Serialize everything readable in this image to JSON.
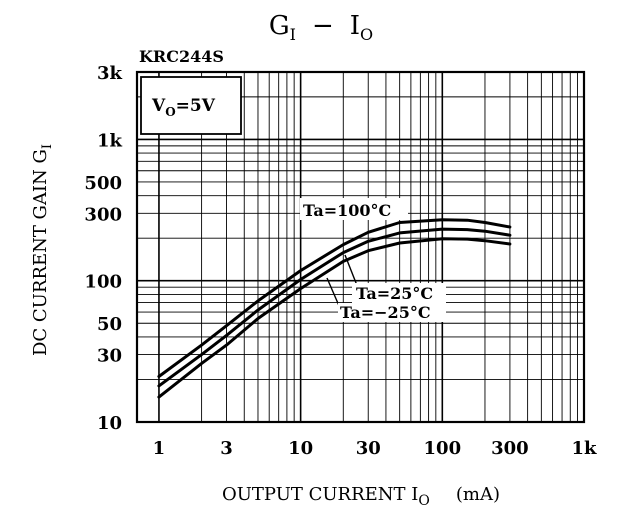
{
  "chart_data": {
    "type": "line",
    "title": {
      "main": "G",
      "main_sub": "I",
      "sep": "−",
      "var": "I",
      "var_sub": "O"
    },
    "device": "KRC244S",
    "condition": {
      "prefix": "V",
      "sub": "O",
      "suffix": "=5V"
    },
    "ylabel": {
      "main": "DC  CURRENT  GAIN  G",
      "sub": "I"
    },
    "xlabel": {
      "main": "OUTPUT  CURRENT  I",
      "sub": "O",
      "unit": "(mA)"
    },
    "x_scale": "log",
    "y_scale": "log",
    "xlim": [
      0.7,
      1000
    ],
    "ylim": [
      10,
      3000
    ],
    "x_tick_labels": [
      {
        "value": 1,
        "label": "1"
      },
      {
        "value": 3,
        "label": "3"
      },
      {
        "value": 10,
        "label": "10"
      },
      {
        "value": 30,
        "label": "30"
      },
      {
        "value": 100,
        "label": "100"
      },
      {
        "value": 300,
        "label": "300"
      },
      {
        "value": 1000,
        "label": "1k"
      }
    ],
    "y_tick_labels": [
      {
        "value": 10,
        "label": "10"
      },
      {
        "value": 30,
        "label": "30"
      },
      {
        "value": 50,
        "label": "50"
      },
      {
        "value": 100,
        "label": "100"
      },
      {
        "value": 300,
        "label": "300"
      },
      {
        "value": 500,
        "label": "500"
      },
      {
        "value": 1000,
        "label": "1k"
      },
      {
        "value": 3000,
        "label": "3k"
      }
    ],
    "grid": true,
    "series": [
      {
        "name": "Ta=100°C",
        "x": [
          1,
          2,
          3,
          5,
          10,
          20,
          30,
          50,
          100,
          150,
          200,
          300
        ],
        "y": [
          21,
          35,
          48,
          72,
          118,
          180,
          220,
          258,
          270,
          268,
          258,
          240
        ]
      },
      {
        "name": "Ta=25°C",
        "x": [
          1,
          2,
          3,
          5,
          10,
          20,
          30,
          50,
          100,
          150,
          200,
          300
        ],
        "y": [
          18,
          30,
          41,
          62,
          102,
          158,
          190,
          218,
          232,
          230,
          224,
          210
        ]
      },
      {
        "name": "Ta=−25°C",
        "x": [
          1,
          2,
          3,
          5,
          10,
          20,
          30,
          50,
          100,
          150,
          200,
          300
        ],
        "y": [
          15,
          26,
          35,
          54,
          88,
          137,
          163,
          185,
          198,
          197,
          192,
          182
        ]
      }
    ]
  }
}
